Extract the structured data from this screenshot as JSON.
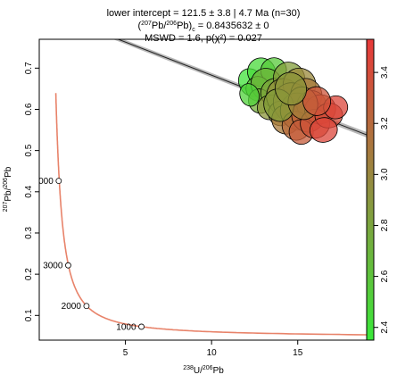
{
  "chart_data": {
    "type": "scatter",
    "subtype": "tera-wasserburg-concordia",
    "title_lines": {
      "line1": "lower intercept = 121.5 ± 3.8 | 4.7 Ma (n=30)",
      "line2_prefix": "(",
      "line2_sup1": "207",
      "line2_mid": "Pb/",
      "line2_sup2": "206",
      "line2_end": "Pb)",
      "line2_sub": "c",
      "line2_value": " = 0.8435632 ± 0",
      "line3": "MSWD = 1.6, p(χ²) = 0.027"
    },
    "xlabel": {
      "sup": "238",
      "a": "U/",
      "sup2": "206",
      "b": "Pb"
    },
    "ylabel": {
      "sup": "207",
      "a": "Pb/",
      "sup2": "206",
      "b": "Pb"
    },
    "xlim": [
      0,
      19
    ],
    "ylim": [
      0.04,
      0.77
    ],
    "xticks": [
      "5",
      "10",
      "15"
    ],
    "xtick_values": [
      5,
      10,
      15
    ],
    "yticks": [
      "0.1",
      "0.2",
      "0.3",
      "0.4",
      "0.5",
      "0.6",
      "0.7"
    ],
    "ytick_values": [
      0.1,
      0.2,
      0.3,
      0.4,
      0.5,
      0.6,
      0.7
    ],
    "concordia_age_labels": [
      {
        "label": "1000",
        "x": 5.93,
        "y": 0.0726
      },
      {
        "label": "2000",
        "x": 2.74,
        "y": 0.1229
      },
      {
        "label": "3000",
        "x": 1.68,
        "y": 0.2216
      },
      {
        "label": "4000",
        "x": 1.13,
        "y": 0.4264
      }
    ],
    "colorbar": {
      "ticks": [
        "2.4",
        "2.6",
        "2.8",
        "3.0",
        "3.2",
        "3.4"
      ],
      "tick_values": [
        2.4,
        2.6,
        2.8,
        3.0,
        3.2,
        3.4
      ],
      "range": [
        2.35,
        3.53
      ],
      "color_low": "#39e839",
      "color_high": "#e83939"
    },
    "discordia_line": {
      "x1": 0,
      "y1": 0.84356,
      "x2": 19,
      "y2": 0.5382
    },
    "ellipses": [
      {
        "x": 12.3,
        "y": 0.665,
        "rx": 0.7,
        "ry": 0.035,
        "rot": -30,
        "z": 2.4
      },
      {
        "x": 12.9,
        "y": 0.69,
        "rx": 0.8,
        "ry": 0.035,
        "rot": -30,
        "z": 2.45
      },
      {
        "x": 13.6,
        "y": 0.695,
        "rx": 0.75,
        "ry": 0.03,
        "rot": -25,
        "z": 2.55
      },
      {
        "x": 12.7,
        "y": 0.65,
        "rx": 0.7,
        "ry": 0.03,
        "rot": -25,
        "z": 2.6
      },
      {
        "x": 13.2,
        "y": 0.66,
        "rx": 0.9,
        "ry": 0.04,
        "rot": -30,
        "z": 2.7
      },
      {
        "x": 12.8,
        "y": 0.62,
        "rx": 0.65,
        "ry": 0.03,
        "rot": -20,
        "z": 2.75
      },
      {
        "x": 13.7,
        "y": 0.64,
        "rx": 0.85,
        "ry": 0.035,
        "rot": -25,
        "z": 2.8
      },
      {
        "x": 14.5,
        "y": 0.675,
        "rx": 0.9,
        "ry": 0.04,
        "rot": -25,
        "z": 2.85
      },
      {
        "x": 13.4,
        "y": 0.605,
        "rx": 0.75,
        "ry": 0.03,
        "rot": -20,
        "z": 2.9
      },
      {
        "x": 14.2,
        "y": 0.63,
        "rx": 1.0,
        "ry": 0.045,
        "rot": -25,
        "z": 2.95
      },
      {
        "x": 15.1,
        "y": 0.66,
        "rx": 0.95,
        "ry": 0.04,
        "rot": -25,
        "z": 3.0
      },
      {
        "x": 14.0,
        "y": 0.59,
        "rx": 0.7,
        "ry": 0.03,
        "rot": -20,
        "z": 3.0
      },
      {
        "x": 14.7,
        "y": 0.615,
        "rx": 1.1,
        "ry": 0.05,
        "rot": -25,
        "z": 3.05
      },
      {
        "x": 15.5,
        "y": 0.635,
        "rx": 0.9,
        "ry": 0.04,
        "rot": -20,
        "z": 3.1
      },
      {
        "x": 14.3,
        "y": 0.575,
        "rx": 0.8,
        "ry": 0.035,
        "rot": -20,
        "z": 3.1
      },
      {
        "x": 15.0,
        "y": 0.595,
        "rx": 1.0,
        "ry": 0.045,
        "rot": -20,
        "z": 3.15
      },
      {
        "x": 15.8,
        "y": 0.61,
        "rx": 0.85,
        "ry": 0.035,
        "rot": -15,
        "z": 3.2
      },
      {
        "x": 14.9,
        "y": 0.56,
        "rx": 0.8,
        "ry": 0.035,
        "rot": -20,
        "z": 3.2
      },
      {
        "x": 15.6,
        "y": 0.585,
        "rx": 0.95,
        "ry": 0.04,
        "rot": -15,
        "z": 3.25
      },
      {
        "x": 16.3,
        "y": 0.6,
        "rx": 0.9,
        "ry": 0.035,
        "rot": -15,
        "z": 3.3
      },
      {
        "x": 15.2,
        "y": 0.545,
        "rx": 0.7,
        "ry": 0.03,
        "rot": -15,
        "z": 3.3
      },
      {
        "x": 16.0,
        "y": 0.565,
        "rx": 0.85,
        "ry": 0.035,
        "rot": -15,
        "z": 3.35
      },
      {
        "x": 16.8,
        "y": 0.585,
        "rx": 0.8,
        "ry": 0.03,
        "rot": -10,
        "z": 3.4
      },
      {
        "x": 17.2,
        "y": 0.605,
        "rx": 0.7,
        "ry": 0.028,
        "rot": -10,
        "z": 3.45
      },
      {
        "x": 16.5,
        "y": 0.55,
        "rx": 0.8,
        "ry": 0.03,
        "rot": -10,
        "z": 3.45
      },
      {
        "x": 13.9,
        "y": 0.61,
        "rx": 0.85,
        "ry": 0.04,
        "rot": -25,
        "z": 2.85
      },
      {
        "x": 15.3,
        "y": 0.615,
        "rx": 0.85,
        "ry": 0.04,
        "rot": -20,
        "z": 3.05
      },
      {
        "x": 16.1,
        "y": 0.62,
        "rx": 0.8,
        "ry": 0.035,
        "rot": -15,
        "z": 3.35
      },
      {
        "x": 12.2,
        "y": 0.635,
        "rx": 0.55,
        "ry": 0.028,
        "rot": -20,
        "z": 2.5
      },
      {
        "x": 14.6,
        "y": 0.65,
        "rx": 0.9,
        "ry": 0.04,
        "rot": -25,
        "z": 2.9
      }
    ]
  }
}
